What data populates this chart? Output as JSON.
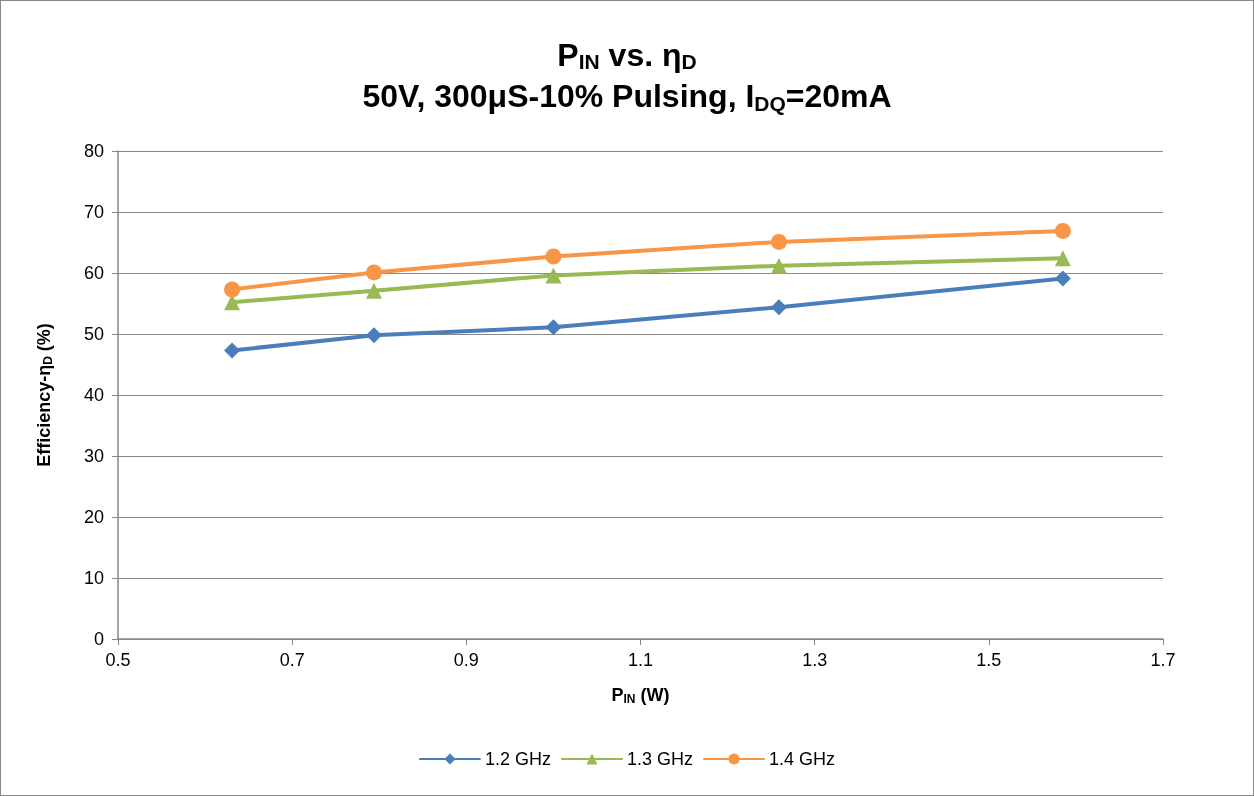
{
  "chart_data": {
    "type": "line",
    "title": "P$_{IN}$ vs. η$_{D}$",
    "subtitle": "50V, 300μS-10% Pulsing, I$_{DQ}$=20mA",
    "xlabel": "P$_{IN}$ (W)",
    "ylabel": "Efficiency-η$_{D}$ (%)",
    "x": [
      0.631,
      0.794,
      1.0,
      1.259,
      1.585
    ],
    "series": [
      {
        "name": "1.2 GHz",
        "color": "#4a7ebb",
        "marker": "diamond",
        "values": [
          47.3,
          49.8,
          51.1,
          54.4,
          59.1
        ]
      },
      {
        "name": "1.3 GHz",
        "color": "#98b954",
        "marker": "triangle",
        "values": [
          55.2,
          57.1,
          59.6,
          61.2,
          62.4
        ]
      },
      {
        "name": "1.4 GHz",
        "color": "#f79646",
        "marker": "circle",
        "values": [
          57.3,
          60.1,
          62.7,
          65.1,
          66.9
        ]
      }
    ],
    "xlim": [
      0.5,
      1.7
    ],
    "xticks": [
      0.5,
      0.7,
      0.9,
      1.1,
      1.3,
      1.5,
      1.7
    ],
    "ylim": [
      0,
      80
    ],
    "yticks": [
      0,
      10,
      20,
      30,
      40,
      50,
      60,
      70,
      80
    ],
    "grid": "y",
    "legend": "bottom",
    "line_style": "solid"
  }
}
